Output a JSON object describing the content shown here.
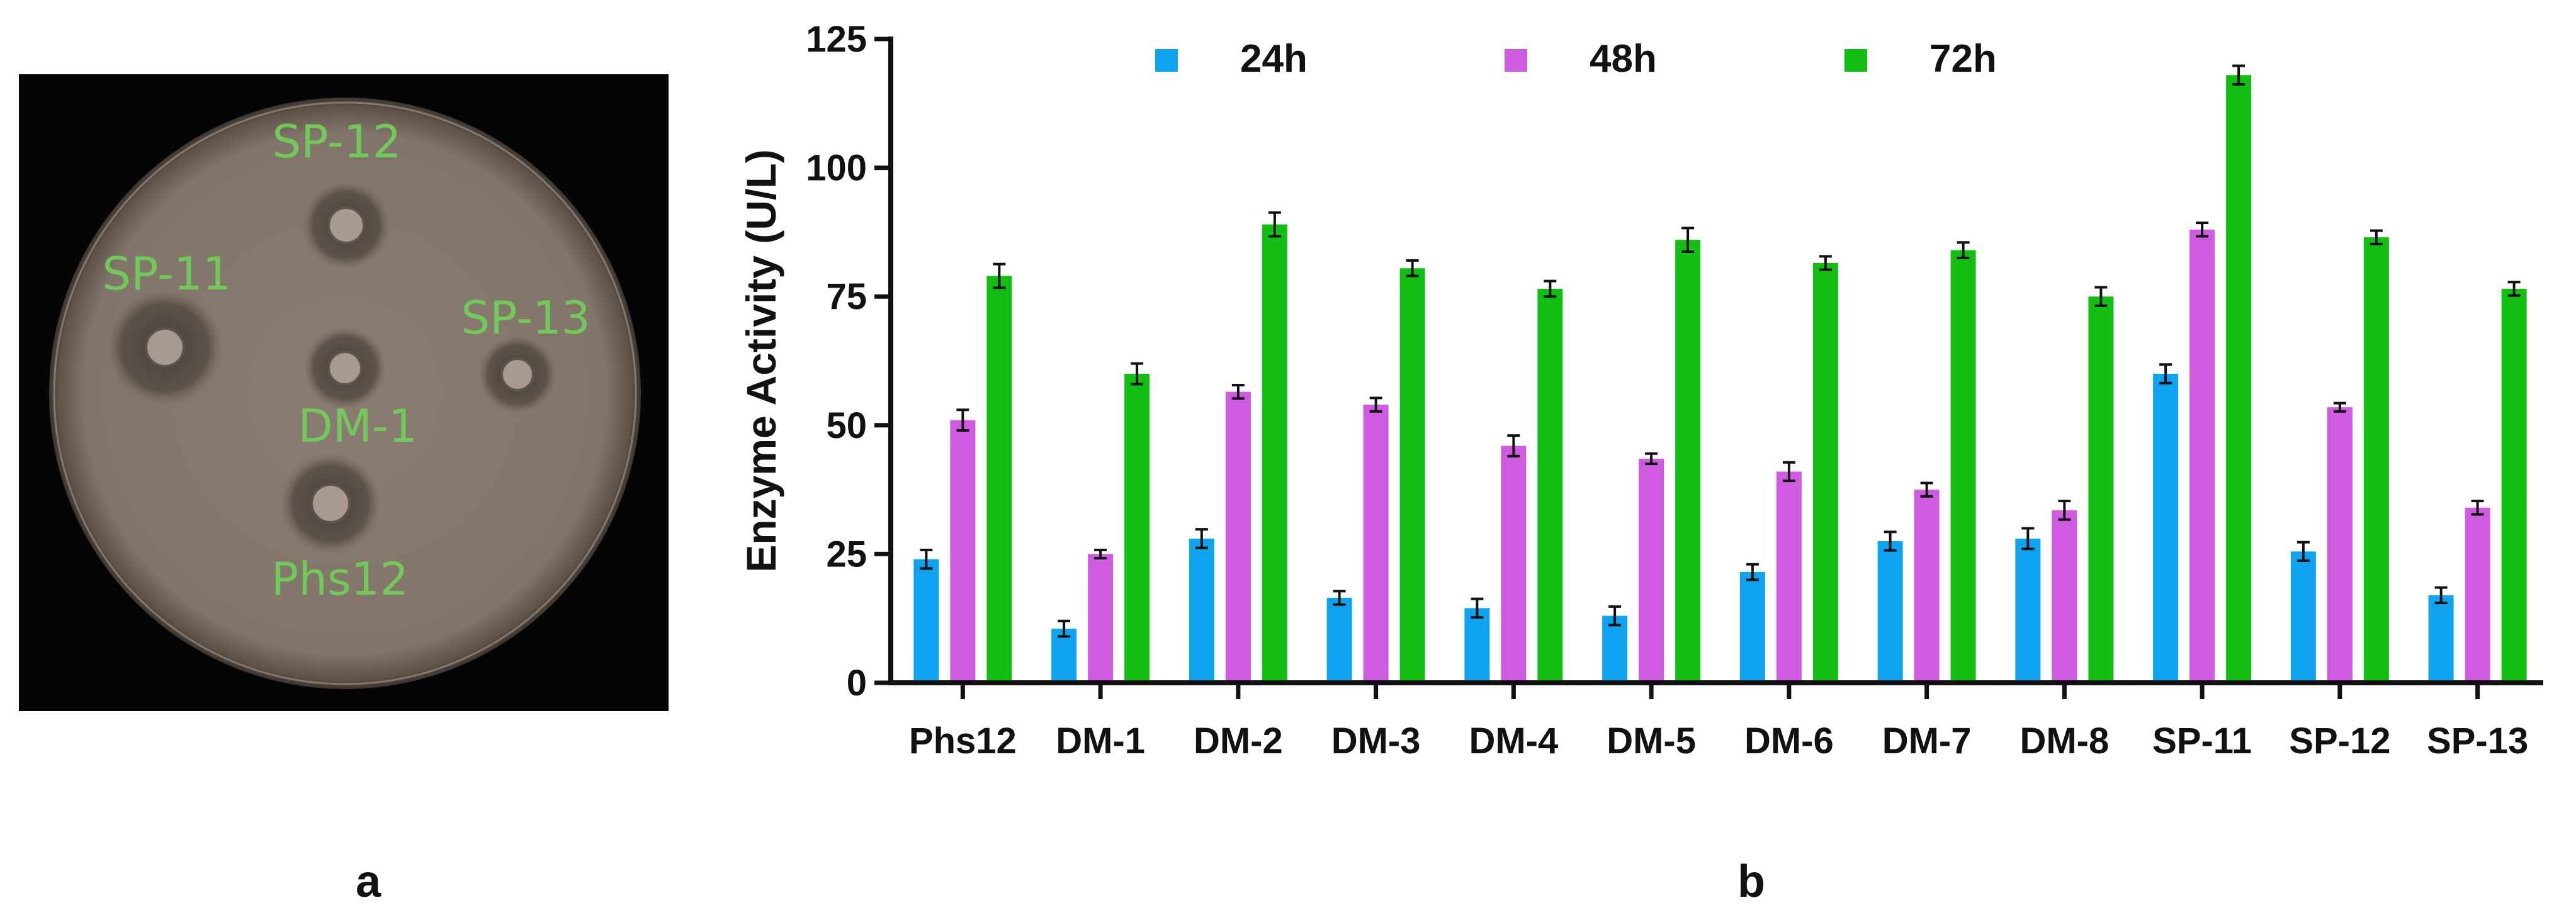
{
  "panel_a": {
    "letter": "a",
    "colonies": [
      {
        "label": "SP-12"
      },
      {
        "label": "SP-11"
      },
      {
        "label": "SP-13"
      },
      {
        "label": "DM-1"
      },
      {
        "label": "Phs12"
      }
    ]
  },
  "panel_b": {
    "letter": "b"
  },
  "chart_data": {
    "type": "bar",
    "title": "",
    "xlabel": "",
    "ylabel": "Enzyme Activity (U/L)",
    "ylim": [
      0,
      125
    ],
    "yticks": [
      0,
      25,
      50,
      75,
      100,
      125
    ],
    "grid": false,
    "legend_position": "top",
    "categories": [
      "Phs12",
      "DM-1",
      "DM-2",
      "DM-3",
      "DM-4",
      "DM-5",
      "DM-6",
      "DM-7",
      "DM-8",
      "SP-11",
      "SP-12",
      "SP-13"
    ],
    "series": [
      {
        "name": "24h",
        "color": "#0fa3ef",
        "values": [
          24,
          10.5,
          28,
          16.5,
          14.5,
          13,
          21.5,
          27.5,
          28,
          60,
          25.5,
          17
        ],
        "errors": [
          1.8,
          1.5,
          1.8,
          1.3,
          1.8,
          1.8,
          1.5,
          1.8,
          2.0,
          1.8,
          1.8,
          1.5
        ]
      },
      {
        "name": "48h",
        "color": "#cf5be0",
        "values": [
          51,
          25,
          56.5,
          54,
          46,
          43.5,
          41,
          37.5,
          33.5,
          88,
          53.5,
          34
        ],
        "errors": [
          2.0,
          0.8,
          1.3,
          1.3,
          2.0,
          1.0,
          1.8,
          1.3,
          1.8,
          1.3,
          0.8,
          1.3
        ]
      },
      {
        "name": "72h",
        "color": "#12bf12",
        "values": [
          79,
          60,
          89,
          80.5,
          76.5,
          86,
          81.5,
          84,
          75,
          118,
          86.5,
          76.5
        ],
        "errors": [
          2.3,
          2.0,
          2.3,
          1.5,
          1.5,
          2.3,
          1.3,
          1.5,
          1.8,
          1.8,
          1.3,
          1.3
        ]
      }
    ]
  }
}
